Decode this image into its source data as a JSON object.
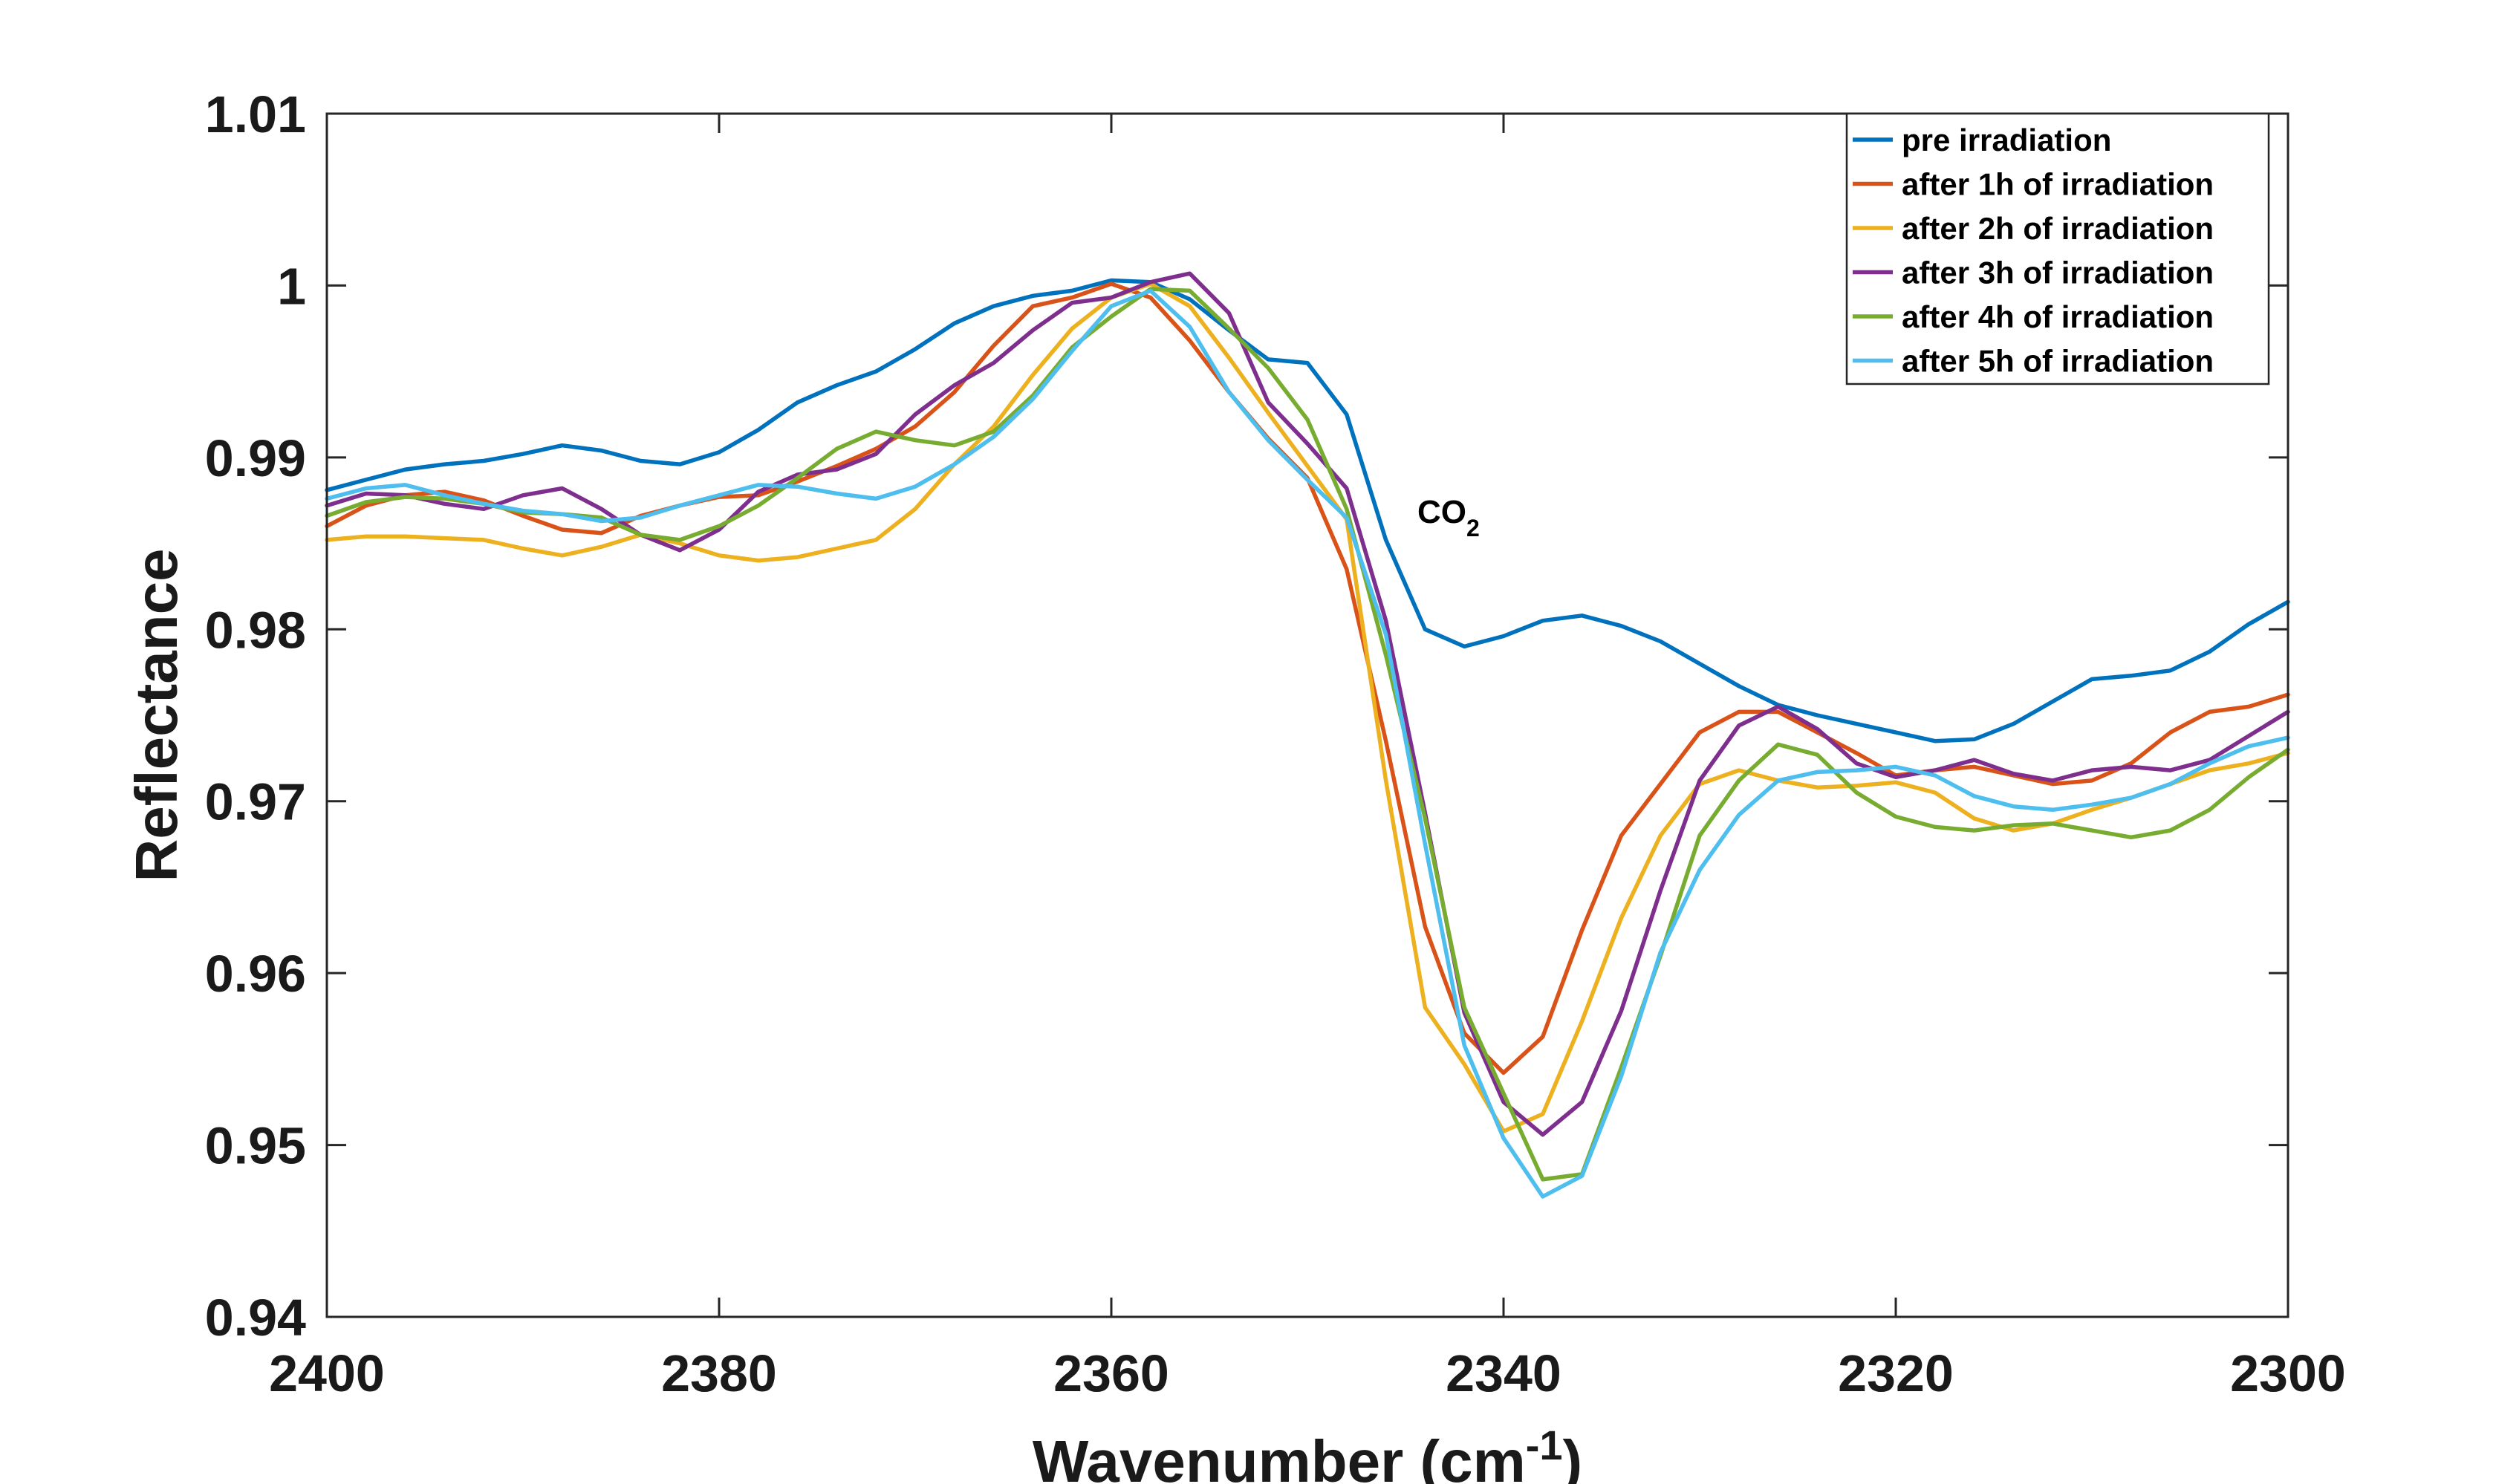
{
  "chart_data": {
    "type": "line",
    "title": "",
    "xlabel": "Wavenumber (cm",
    "xlabel_sup": "-1",
    "xlabel_close": ")",
    "ylabel": "Reflectance",
    "xlim": [
      2400,
      2300
    ],
    "ylim": [
      0.94,
      1.01
    ],
    "x_reversed": true,
    "grid": false,
    "legend_position": "top-right",
    "xticks": [
      2400,
      2380,
      2360,
      2340,
      2320,
      2300
    ],
    "xtick_labels": [
      "2400",
      "2380",
      "2360",
      "2340",
      "2320",
      "2300"
    ],
    "yticks": [
      0.94,
      0.95,
      0.96,
      0.97,
      0.98,
      0.99,
      1.0,
      1.01
    ],
    "ytick_labels": [
      "0.94",
      "0.95",
      "0.96",
      "0.97",
      "0.98",
      "0.99",
      "1",
      "1.01"
    ],
    "annotations": [
      {
        "base": "CO",
        "sub": "2",
        "x": 2344,
        "y": 0.9862
      }
    ],
    "x": [
      2400,
      2398,
      2396,
      2394,
      2392,
      2390,
      2388,
      2386,
      2384,
      2382,
      2380,
      2378,
      2376,
      2374,
      2372,
      2370,
      2368,
      2366,
      2364,
      2362,
      2360,
      2358,
      2356,
      2354,
      2352,
      2350,
      2348,
      2346,
      2344,
      2342,
      2340,
      2338,
      2336,
      2334,
      2332,
      2330,
      2328,
      2326,
      2324,
      2322,
      2320,
      2318,
      2316,
      2314,
      2312,
      2310,
      2308,
      2306,
      2304,
      2302,
      2300
    ],
    "series": [
      {
        "name": "pre irradiation",
        "color": "#0072BD",
        "values": [
          0.9881,
          0.9887,
          0.9893,
          0.9896,
          0.9898,
          0.9902,
          0.9907,
          0.9904,
          0.9898,
          0.9896,
          0.9903,
          0.9916,
          0.9932,
          0.9942,
          0.995,
          0.9963,
          0.9978,
          0.9988,
          0.9994,
          0.9997,
          1.0003,
          1.0002,
          0.9992,
          0.9974,
          0.9957,
          0.9955,
          0.9925,
          0.9852,
          0.98,
          0.979,
          0.9796,
          0.9805,
          0.9808,
          0.9802,
          0.9793,
          0.978,
          0.9767,
          0.9756,
          0.975,
          0.9745,
          0.974,
          0.9735,
          0.9736,
          0.9745,
          0.9758,
          0.9771,
          0.9773,
          0.9776,
          0.9787,
          0.9803,
          0.9816
        ]
      },
      {
        "name": "after 1h of irradiation",
        "color": "#D95319",
        "values": [
          0.986,
          0.9872,
          0.9878,
          0.988,
          0.9875,
          0.9866,
          0.9858,
          0.9856,
          0.9866,
          0.9872,
          0.9877,
          0.9878,
          0.9886,
          0.9895,
          0.9905,
          0.9918,
          0.9938,
          0.9965,
          0.9988,
          0.9993,
          1.0001,
          0.9993,
          0.9968,
          0.9938,
          0.9911,
          0.9888,
          0.9835,
          0.9735,
          0.9627,
          0.9565,
          0.9542,
          0.9563,
          0.9625,
          0.968,
          0.971,
          0.974,
          0.9752,
          0.9752,
          0.974,
          0.9728,
          0.9715,
          0.9718,
          0.972,
          0.9715,
          0.971,
          0.9712,
          0.9722,
          0.974,
          0.9752,
          0.9755,
          0.9762
        ]
      },
      {
        "name": "after 2h of irradiation",
        "color": "#EDB120",
        "values": [
          0.9852,
          0.9854,
          0.9854,
          0.9853,
          0.9852,
          0.9847,
          0.9843,
          0.9848,
          0.9855,
          0.985,
          0.9843,
          0.984,
          0.9842,
          0.9847,
          0.9852,
          0.987,
          0.9896,
          0.9918,
          0.9948,
          0.9975,
          0.9993,
          1.0001,
          0.9988,
          0.9958,
          0.9926,
          0.9895,
          0.9864,
          0.9712,
          0.958,
          0.9547,
          0.9508,
          0.9518,
          0.9572,
          0.9632,
          0.968,
          0.971,
          0.9718,
          0.9712,
          0.9708,
          0.9709,
          0.9711,
          0.9705,
          0.969,
          0.9683,
          0.9687,
          0.9695,
          0.9702,
          0.971,
          0.9718,
          0.9722,
          0.9728
        ]
      },
      {
        "name": "after 3h of irradiation",
        "color": "#7E2F8E",
        "values": [
          0.9872,
          0.9879,
          0.9878,
          0.9873,
          0.987,
          0.9878,
          0.9882,
          0.987,
          0.9855,
          0.9846,
          0.9858,
          0.988,
          0.989,
          0.9893,
          0.9902,
          0.9925,
          0.9942,
          0.9955,
          0.9974,
          0.999,
          0.9993,
          1.0002,
          1.0007,
          0.9984,
          0.9932,
          0.9908,
          0.9882,
          0.9805,
          0.9693,
          0.9577,
          0.9525,
          0.9506,
          0.9525,
          0.9578,
          0.9648,
          0.9712,
          0.9744,
          0.9755,
          0.9742,
          0.9722,
          0.9714,
          0.9718,
          0.9724,
          0.9716,
          0.9712,
          0.9718,
          0.972,
          0.9718,
          0.9724,
          0.9738,
          0.9752
        ]
      },
      {
        "name": "after 4h of irradiation",
        "color": "#77AC30",
        "values": [
          0.9866,
          0.9874,
          0.9877,
          0.9876,
          0.9873,
          0.9868,
          0.9867,
          0.9865,
          0.9855,
          0.9852,
          0.986,
          0.9872,
          0.9888,
          0.9905,
          0.9915,
          0.991,
          0.9907,
          0.9915,
          0.9936,
          0.9964,
          0.9982,
          0.9998,
          0.9997,
          0.9975,
          0.9952,
          0.9922,
          0.987,
          0.9785,
          0.969,
          0.958,
          0.953,
          0.948,
          0.9483,
          0.9545,
          0.961,
          0.968,
          0.9712,
          0.9733,
          0.9727,
          0.9705,
          0.9691,
          0.9685,
          0.9683,
          0.9686,
          0.9687,
          0.9683,
          0.9679,
          0.9683,
          0.9695,
          0.9714,
          0.973
        ]
      },
      {
        "name": "after 5h of irradiation",
        "color": "#4DBEEE",
        "values": [
          0.9876,
          0.9882,
          0.9884,
          0.9878,
          0.9873,
          0.9869,
          0.9867,
          0.9863,
          0.9865,
          0.9872,
          0.9878,
          0.9884,
          0.9883,
          0.9879,
          0.9876,
          0.9883,
          0.9896,
          0.9912,
          0.9934,
          0.9962,
          0.9988,
          0.9997,
          0.9976,
          0.9938,
          0.991,
          0.9887,
          0.9865,
          0.9797,
          0.9675,
          0.9558,
          0.9504,
          0.947,
          0.9482,
          0.954,
          0.9612,
          0.966,
          0.9692,
          0.9712,
          0.9717,
          0.9718,
          0.972,
          0.9715,
          0.9703,
          0.9697,
          0.9695,
          0.9698,
          0.9702,
          0.971,
          0.9722,
          0.9732,
          0.9737
        ]
      }
    ]
  }
}
